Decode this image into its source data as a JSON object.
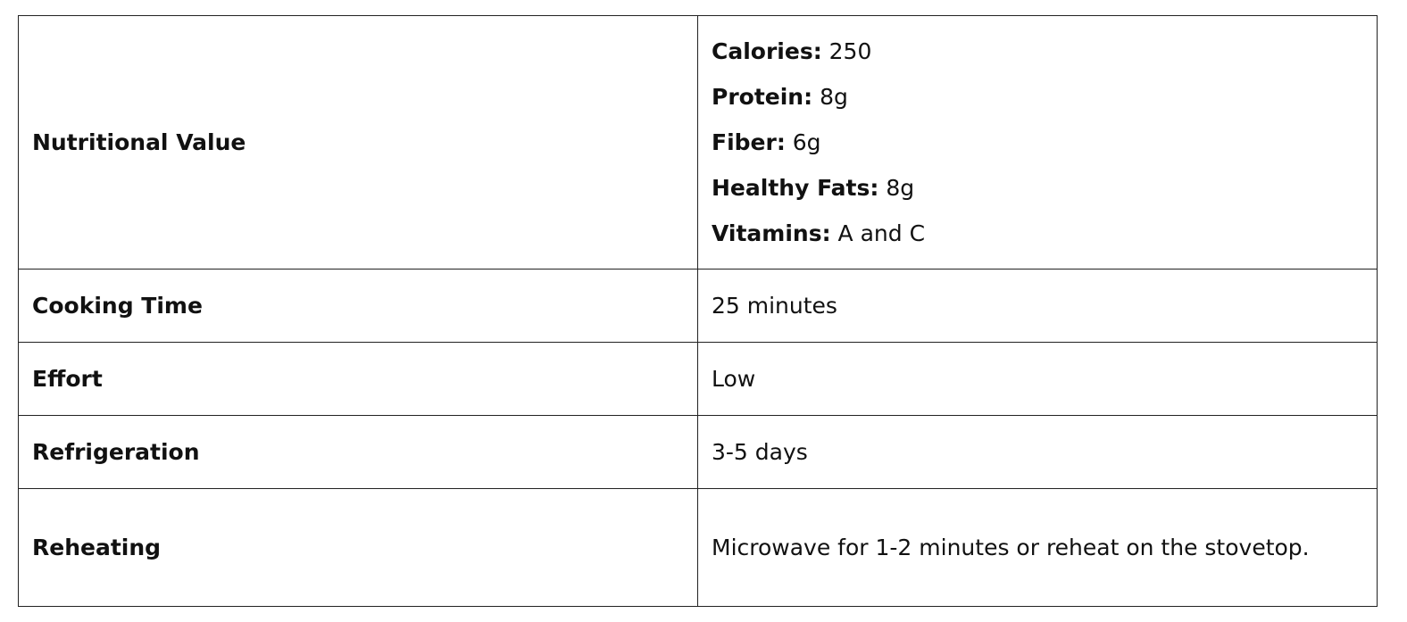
{
  "table": {
    "rows": [
      {
        "label": "Nutritional Value",
        "items": [
          {
            "key": "Calories:",
            "value": "250"
          },
          {
            "key": "Protein:",
            "value": "8g"
          },
          {
            "key": "Fiber:",
            "value": "6g"
          },
          {
            "key": "Healthy Fats:",
            "value": "8g"
          },
          {
            "key": "Vitamins:",
            "value": "A and C"
          }
        ]
      },
      {
        "label": "Cooking Time",
        "value": "25 minutes"
      },
      {
        "label": "Effort",
        "value": "Low"
      },
      {
        "label": "Refrigeration",
        "value": "3-5 days"
      },
      {
        "label": "Reheating",
        "value": "Microwave for 1-2 minutes or reheat on the stovetop."
      }
    ]
  }
}
